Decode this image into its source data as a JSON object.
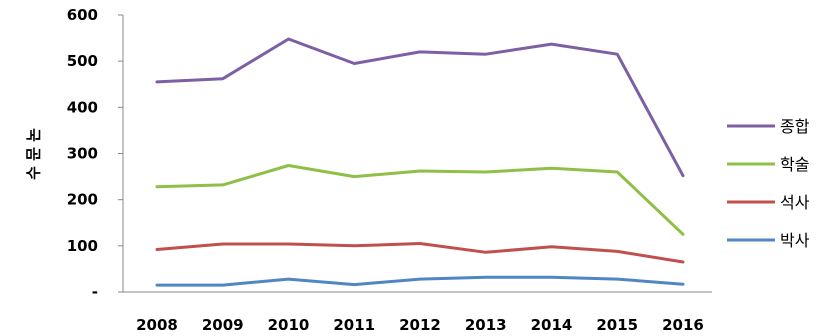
{
  "chart_data": {
    "type": "line",
    "title": "",
    "xlabel": "",
    "ylabel": "논문수",
    "categories": [
      "2008",
      "2009",
      "2010",
      "2011",
      "2012",
      "2013",
      "2014",
      "2015",
      "2016"
    ],
    "ylim": [
      0,
      600
    ],
    "yticks": [
      0,
      100,
      200,
      300,
      400,
      500,
      600
    ],
    "ytick_labels": [
      "-",
      "100",
      "200",
      "300",
      "400",
      "500",
      "600"
    ],
    "grid": false,
    "legend_position": "right",
    "series": [
      {
        "name": "종합",
        "color": "#7d5fa6",
        "values": [
          455,
          462,
          548,
          495,
          520,
          515,
          537,
          515,
          252
        ]
      },
      {
        "name": "학술",
        "color": "#8fbf46",
        "values": [
          228,
          232,
          274,
          250,
          262,
          260,
          268,
          260,
          125
        ]
      },
      {
        "name": "석사",
        "color": "#c0504d",
        "values": [
          92,
          104,
          104,
          100,
          105,
          86,
          98,
          88,
          65
        ]
      },
      {
        "name": "박사",
        "color": "#4f87c4",
        "values": [
          15,
          15,
          28,
          16,
          28,
          32,
          32,
          28,
          17
        ]
      }
    ]
  }
}
